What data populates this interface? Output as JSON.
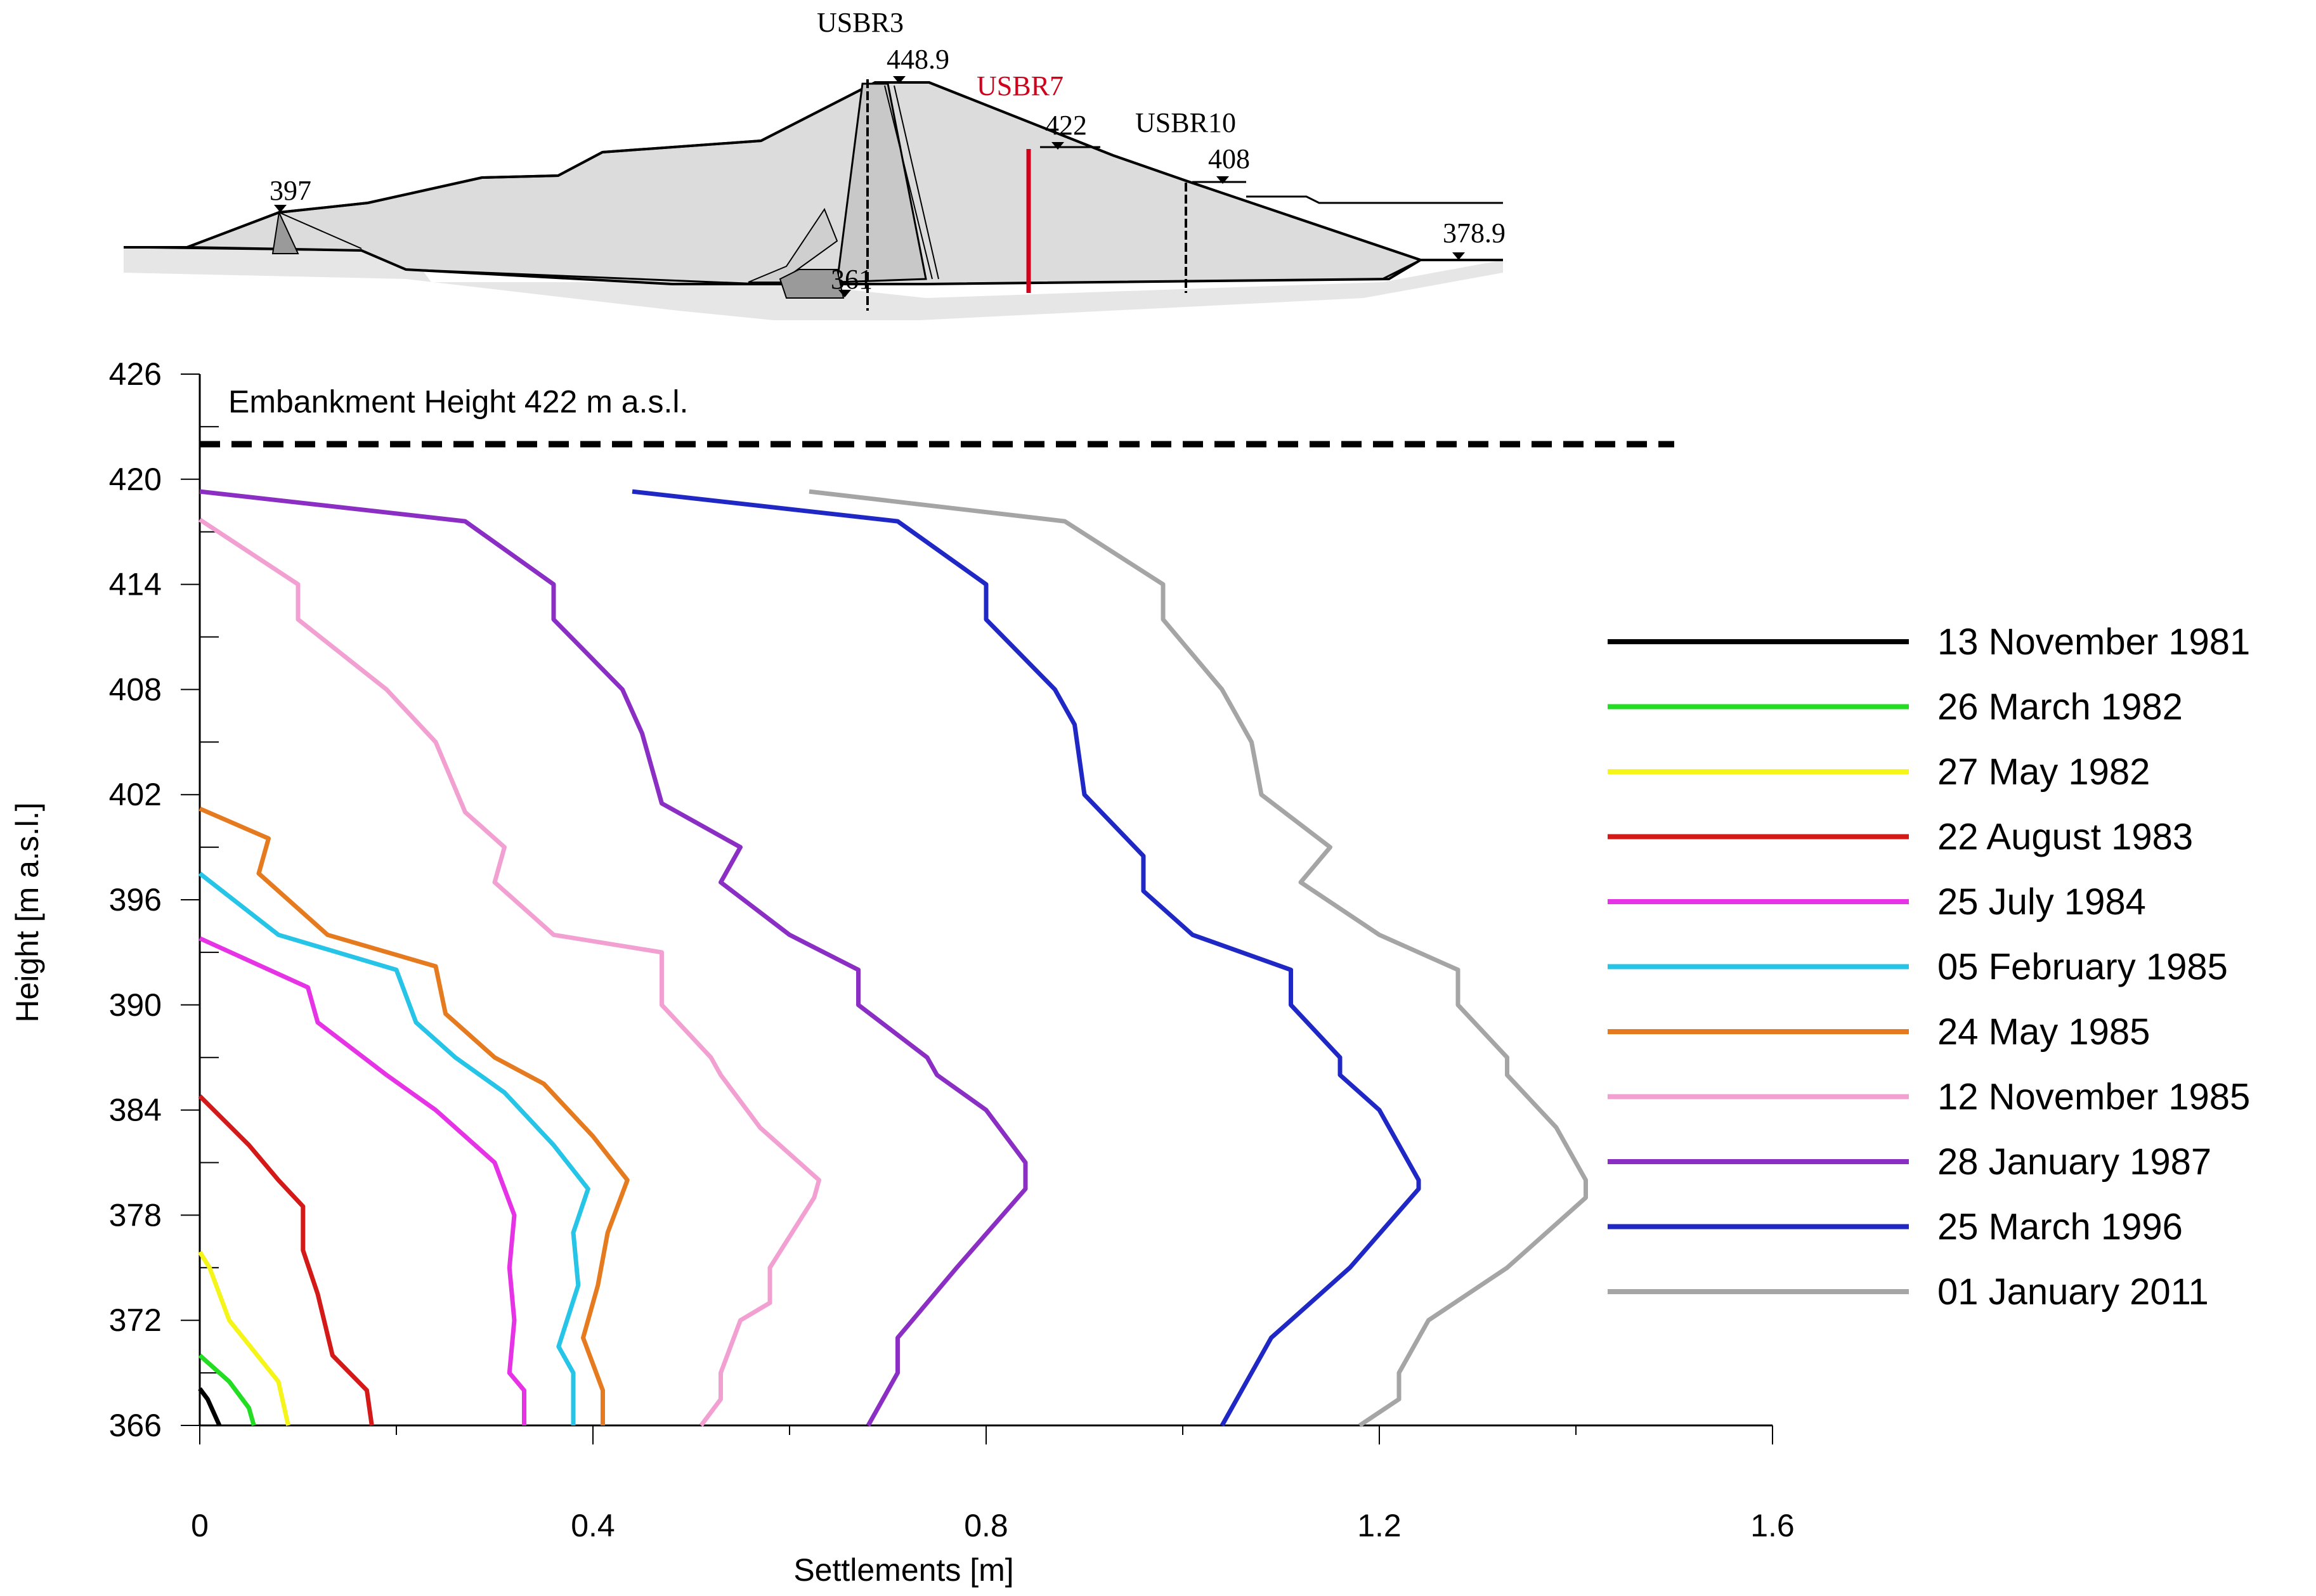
{
  "cross_section": {
    "instruments": [
      {
        "name": "USBR3",
        "color": "#000000"
      },
      {
        "name": "USBR7",
        "color": "#d0021b"
      },
      {
        "name": "USBR10",
        "color": "#000000"
      }
    ],
    "elevations": [
      "448.9",
      "422",
      "408",
      "397",
      "378.9",
      "361"
    ]
  },
  "chart_data": {
    "type": "line",
    "title": "",
    "xlabel": "Settlements [m]",
    "ylabel": "Height [m a.s.l.]",
    "xlim": [
      0,
      1.6
    ],
    "ylim": [
      366,
      426
    ],
    "xticks": [
      "0",
      "0.4",
      "0.8",
      "1.2",
      "1.6"
    ],
    "yticks": [
      "366",
      "372",
      "378",
      "384",
      "390",
      "396",
      "402",
      "408",
      "414",
      "420",
      "426"
    ],
    "reference_line": {
      "label": "Embankment Height 422 m a.s.l.",
      "y": 422,
      "x_range": [
        0,
        1.5
      ]
    },
    "legend_position": "right",
    "series": [
      {
        "name": "13 November 1981",
        "color": "#000000",
        "points": [
          [
            0,
            368.1
          ],
          [
            0.008,
            367.5
          ],
          [
            0.02,
            366
          ]
        ]
      },
      {
        "name": "26 March 1982",
        "color": "#22dd22",
        "points": [
          [
            0,
            370
          ],
          [
            0.03,
            368.5
          ],
          [
            0.05,
            367
          ],
          [
            0.055,
            366
          ]
        ]
      },
      {
        "name": "27 May 1982",
        "color": "#f5f51a",
        "points": [
          [
            0,
            375.9
          ],
          [
            0.01,
            375
          ],
          [
            0.03,
            372
          ],
          [
            0.08,
            368.5
          ],
          [
            0.09,
            366
          ]
        ]
      },
      {
        "name": "22 August 1983",
        "color": "#d41919",
        "points": [
          [
            0,
            384.8
          ],
          [
            0.05,
            382
          ],
          [
            0.08,
            380
          ],
          [
            0.105,
            378.5
          ],
          [
            0.105,
            376
          ],
          [
            0.12,
            373.5
          ],
          [
            0.135,
            370
          ],
          [
            0.17,
            368
          ],
          [
            0.175,
            366
          ]
        ]
      },
      {
        "name": "25 July 1984",
        "color": "#e633e6",
        "points": [
          [
            0,
            393.8
          ],
          [
            0.11,
            391
          ],
          [
            0.12,
            389
          ],
          [
            0.19,
            386
          ],
          [
            0.24,
            384
          ],
          [
            0.3,
            381
          ],
          [
            0.32,
            378
          ],
          [
            0.315,
            375
          ],
          [
            0.32,
            372
          ],
          [
            0.315,
            369
          ],
          [
            0.33,
            368
          ],
          [
            0.33,
            366
          ]
        ]
      },
      {
        "name": "05 February 1985",
        "color": "#26c4e6",
        "points": [
          [
            0,
            397.5
          ],
          [
            0.08,
            394
          ],
          [
            0.2,
            392
          ],
          [
            0.22,
            389
          ],
          [
            0.26,
            387
          ],
          [
            0.31,
            385
          ],
          [
            0.36,
            382
          ],
          [
            0.395,
            379.5
          ],
          [
            0.38,
            377
          ],
          [
            0.385,
            374
          ],
          [
            0.365,
            370.5
          ],
          [
            0.38,
            369
          ],
          [
            0.38,
            366
          ]
        ]
      },
      {
        "name": "24 May 1985",
        "color": "#e67a1f",
        "points": [
          [
            0,
            401.2
          ],
          [
            0.07,
            399.5
          ],
          [
            0.06,
            397.5
          ],
          [
            0.13,
            394
          ],
          [
            0.24,
            392.2
          ],
          [
            0.25,
            389.5
          ],
          [
            0.3,
            387
          ],
          [
            0.35,
            385.5
          ],
          [
            0.4,
            382.5
          ],
          [
            0.435,
            380
          ],
          [
            0.415,
            377
          ],
          [
            0.405,
            374
          ],
          [
            0.39,
            371
          ],
          [
            0.41,
            368
          ],
          [
            0.41,
            366
          ]
        ]
      },
      {
        "name": "12 November 1985",
        "color": "#f2a0d2",
        "points": [
          [
            0,
            417.7
          ],
          [
            0.1,
            414
          ],
          [
            0.1,
            412
          ],
          [
            0.19,
            408
          ],
          [
            0.24,
            405
          ],
          [
            0.27,
            401
          ],
          [
            0.31,
            399
          ],
          [
            0.3,
            397
          ],
          [
            0.36,
            394
          ],
          [
            0.47,
            393
          ],
          [
            0.47,
            390
          ],
          [
            0.52,
            387
          ],
          [
            0.53,
            386
          ],
          [
            0.57,
            383
          ],
          [
            0.63,
            380
          ],
          [
            0.625,
            379
          ],
          [
            0.58,
            375
          ],
          [
            0.58,
            373
          ],
          [
            0.55,
            372
          ],
          [
            0.53,
            369
          ],
          [
            0.53,
            367.5
          ],
          [
            0.51,
            366
          ]
        ]
      },
      {
        "name": "28 January 1987",
        "color": "#8a2ec4",
        "points": [
          [
            0,
            419.3
          ],
          [
            0.27,
            417.6
          ],
          [
            0.36,
            414
          ],
          [
            0.36,
            412
          ],
          [
            0.43,
            408
          ],
          [
            0.45,
            405.5
          ],
          [
            0.47,
            401.5
          ],
          [
            0.55,
            399
          ],
          [
            0.53,
            397
          ],
          [
            0.6,
            394
          ],
          [
            0.67,
            392
          ],
          [
            0.67,
            390
          ],
          [
            0.74,
            387
          ],
          [
            0.75,
            386
          ],
          [
            0.8,
            384
          ],
          [
            0.84,
            381
          ],
          [
            0.84,
            379.5
          ],
          [
            0.77,
            375
          ],
          [
            0.71,
            371
          ],
          [
            0.71,
            369
          ],
          [
            0.68,
            366
          ]
        ]
      },
      {
        "name": "25 March 1996",
        "color": "#1f27c4",
        "points": [
          [
            0.44,
            419.3
          ],
          [
            0.71,
            417.6
          ],
          [
            0.8,
            414
          ],
          [
            0.8,
            412
          ],
          [
            0.87,
            408
          ],
          [
            0.89,
            406
          ],
          [
            0.9,
            402
          ],
          [
            0.96,
            398.5
          ],
          [
            0.96,
            396.5
          ],
          [
            1.01,
            394
          ],
          [
            1.11,
            392
          ],
          [
            1.11,
            390
          ],
          [
            1.16,
            387
          ],
          [
            1.16,
            386
          ],
          [
            1.2,
            384
          ],
          [
            1.24,
            380
          ],
          [
            1.24,
            379.5
          ],
          [
            1.17,
            375
          ],
          [
            1.09,
            371
          ],
          [
            1.07,
            369
          ],
          [
            1.04,
            366
          ]
        ]
      },
      {
        "name": "01 January 2011",
        "color": "#a5a5a5",
        "points": [
          [
            0.62,
            419.3
          ],
          [
            0.88,
            417.6
          ],
          [
            0.98,
            414
          ],
          [
            0.98,
            412
          ],
          [
            1.04,
            408
          ],
          [
            1.07,
            405
          ],
          [
            1.08,
            402
          ],
          [
            1.15,
            399
          ],
          [
            1.12,
            397
          ],
          [
            1.2,
            394
          ],
          [
            1.28,
            392
          ],
          [
            1.28,
            390
          ],
          [
            1.33,
            387
          ],
          [
            1.33,
            386
          ],
          [
            1.38,
            383
          ],
          [
            1.41,
            380
          ],
          [
            1.41,
            379
          ],
          [
            1.33,
            375
          ],
          [
            1.25,
            372
          ],
          [
            1.22,
            369
          ],
          [
            1.22,
            367.5
          ],
          [
            1.18,
            366
          ]
        ]
      }
    ]
  }
}
